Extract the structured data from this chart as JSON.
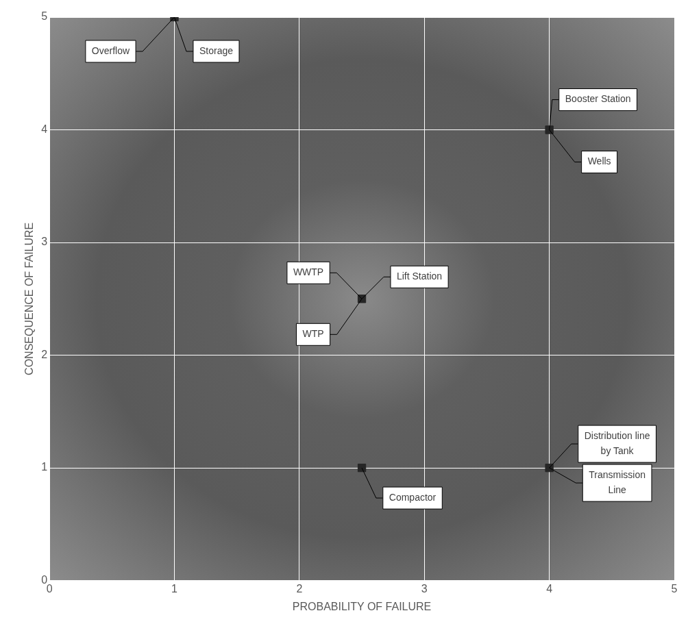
{
  "chart_data": {
    "type": "scatter",
    "xlabel": "PROBABILITY OF FAILURE",
    "ylabel": "CONSEQUENCE OF FAILURE",
    "x": [
      1,
      4,
      2.5,
      2.5,
      4
    ],
    "values": [
      5,
      4,
      2.5,
      1,
      1
    ],
    "color": "#262626",
    "marker": "square",
    "xlim": [
      0,
      5
    ],
    "xticks": [
      0,
      1,
      2,
      3,
      4,
      5
    ],
    "ylim": [
      0,
      5
    ],
    "yticks": [
      0,
      1,
      2,
      3,
      4,
      5
    ],
    "grid": true,
    "legend": false,
    "annotations": [
      {
        "text": "Overflow",
        "x": 1,
        "y": 5
      },
      {
        "text": "Storage",
        "x": 1,
        "y": 5
      },
      {
        "text": "Booster Station",
        "x": 4,
        "y": 4
      },
      {
        "text": "Wells",
        "x": 4,
        "y": 4
      },
      {
        "text": "WWTP",
        "x": 2.5,
        "y": 2.5
      },
      {
        "text": "Lift Station",
        "x": 2.5,
        "y": 2.5
      },
      {
        "text": "WTP",
        "x": 2.5,
        "y": 2.5
      },
      {
        "text": "Compactor",
        "x": 2.5,
        "y": 1
      },
      {
        "text": "Distribution line by Tank",
        "x": 4,
        "y": 1
      },
      {
        "text": "Transmission Line",
        "x": 4,
        "y": 1
      }
    ]
  }
}
